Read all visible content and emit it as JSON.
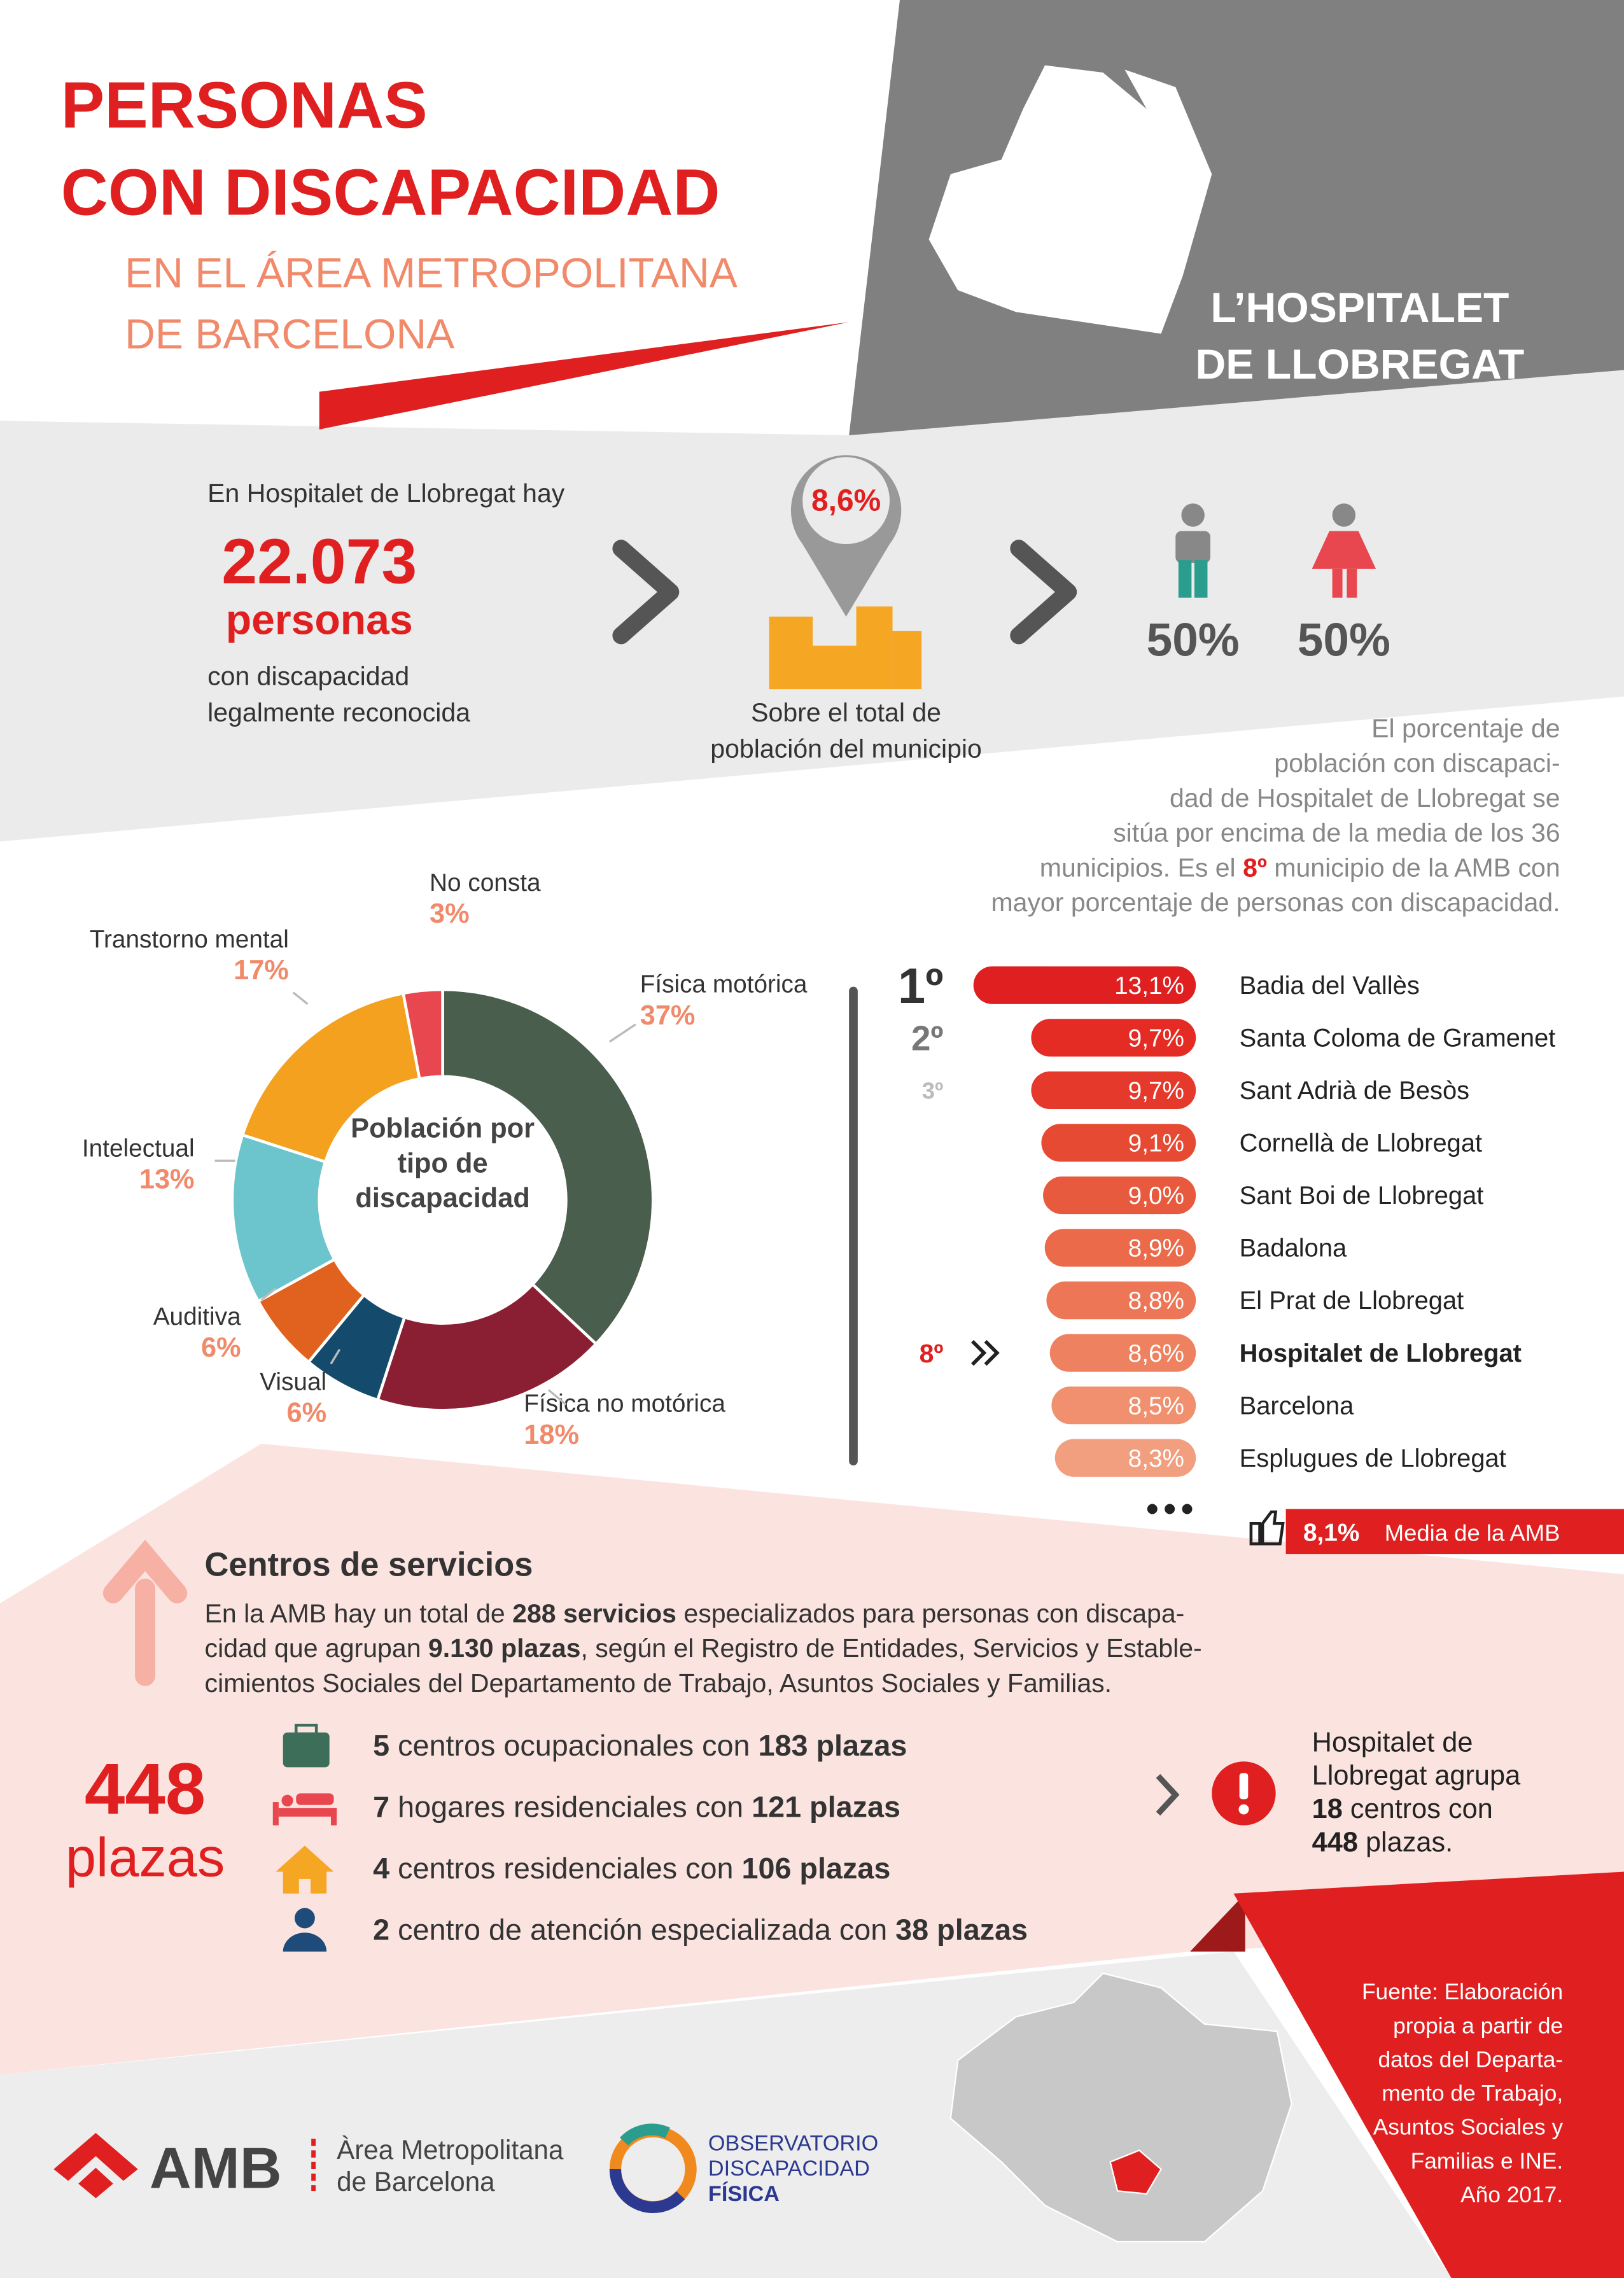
{
  "header": {
    "title": [
      "PERSONAS",
      "CON DISCAPACIDAD"
    ],
    "subtitle": [
      "EN EL ÁREA METROPOLITANA",
      "DE BARCELONA"
    ],
    "municipality": [
      "L’HOSPITALET",
      "DE LLOBREGAT"
    ]
  },
  "summary": {
    "intro": "En Hospitalet de Llobregat  hay",
    "count": "22.073",
    "count_unit": "personas",
    "count_desc": [
      "con discapacidad",
      "legalmente reconocida"
    ],
    "share": "8,6%",
    "share_desc": [
      "Sobre el total de",
      "población del municipio"
    ],
    "men": "50%",
    "women": "50%"
  },
  "note": {
    "lines": [
      [
        {
          "text": "El porcentaje de"
        }
      ],
      [
        {
          "text": "población con discapaci-"
        }
      ],
      [
        {
          "text": "dad de Hospitalet de Llobregat se"
        }
      ],
      [
        {
          "text": "sitúa por encima de la media de los 36"
        }
      ],
      [
        {
          "text": "municipios. Es el "
        },
        {
          "text": "8º",
          "bold": true
        },
        {
          "text": " municipio de la AMB con"
        }
      ],
      [
        {
          "text": "mayor porcentaje de personas con discapacidad."
        }
      ]
    ]
  },
  "chart_data": [
    {
      "type": "donut",
      "center_label": [
        "Población por",
        "tipo de",
        "discapacidad"
      ],
      "categories": [
        "Física motórica",
        "Física no motórica",
        "Visual",
        "Auditiva",
        "Intelectual",
        "Transtorno mental",
        "No consta"
      ],
      "values": [
        37,
        18,
        6,
        6,
        13,
        17,
        3
      ],
      "value_labels": [
        "37%",
        "18%",
        "6%",
        "6%",
        "13%",
        "17%",
        "3%"
      ],
      "colors": [
        "#4a5e4d",
        "#8a1f33",
        "#144b6c",
        "#e0621e",
        "#6cc4cc",
        "#f3a11f",
        "#e8474f"
      ]
    },
    {
      "type": "bar",
      "orientation": "horizontal",
      "categories": [
        "Badia del Vallès",
        "Santa Coloma de Gramenet",
        "Sant Adrià de Besòs",
        "Cornellà de Llobregat",
        "Sant Boi de Llobregat",
        "Badalona",
        "El Prat de Llobregat",
        "Hospitalet de Llobregat",
        "Barcelona",
        "Esplugues de Llobregat"
      ],
      "values": [
        13.1,
        9.7,
        9.7,
        9.1,
        9.0,
        8.9,
        8.8,
        8.6,
        8.5,
        8.3
      ],
      "value_labels": [
        "13,1%",
        "9,7%",
        "9,7%",
        "9,1%",
        "9,0%",
        "8,9%",
        "8,8%",
        "8,6%",
        "8,5%",
        "8,3%"
      ],
      "rank_labels": [
        "1º",
        "2º",
        "3º",
        null,
        null,
        null,
        null,
        "8º",
        null,
        null
      ],
      "highlight": 7,
      "colors": [
        "#e02020",
        "#e42c24",
        "#e53a2b",
        "#e64a33",
        "#e85a3e",
        "#ea6a4a",
        "#ec7656",
        "#ee8260",
        "#f0906e",
        "#f29f80"
      ],
      "average": {
        "name": "Media de la AMB",
        "label": "8,1%"
      }
    }
  ],
  "services": {
    "title": "Centros de servicios",
    "lines": [
      [
        {
          "text": "En la AMB hay un total de "
        },
        {
          "text": "288 servicios",
          "bold": true
        },
        {
          "text": " especializados para personas con discapa-"
        }
      ],
      [
        {
          "text": "cidad que agrupan "
        },
        {
          "text": "9.130 plazas",
          "bold": true
        },
        {
          "text": ", según el Registro de Entidades, Servicios y Estable-"
        }
      ],
      [
        {
          "text": "cimientos Sociales del Departamento de Trabajo, Asuntos Sociales y Familias."
        }
      ]
    ],
    "total": "448",
    "total_unit": "plazas",
    "items": [
      [
        {
          "text": "5",
          "bold": true
        },
        {
          "text": " centros ocupacionales con "
        },
        {
          "text": "183 plazas",
          "bold": true
        }
      ],
      [
        {
          "text": "7",
          "bold": true
        },
        {
          "text": " hogares residenciales con "
        },
        {
          "text": "121 plazas",
          "bold": true
        }
      ],
      [
        {
          "text": "4",
          "bold": true
        },
        {
          "text": " centros residenciales con "
        },
        {
          "text": "106 plazas",
          "bold": true
        }
      ],
      [
        {
          "text": "2",
          "bold": true
        },
        {
          "text": " centro de atención especializada con "
        },
        {
          "text": "38 plazas",
          "bold": true
        }
      ]
    ],
    "callout": [
      [
        {
          "text": "Hospitalet de"
        }
      ],
      [
        {
          "text": "Llobregat agrupa"
        }
      ],
      [
        {
          "text": "18",
          "bold": true
        },
        {
          "text": " centros con"
        }
      ],
      [
        {
          "text": "448",
          "bold": true
        },
        {
          "text": " plazas."
        }
      ]
    ]
  },
  "source": [
    "Fuente: Elaboración",
    "propia a partir de",
    "datos del  Departa-",
    "mento de Trabajo,",
    "Asuntos Sociales y",
    "Familias e INE.",
    "Año 2017."
  ],
  "footer": {
    "amb": "AMB",
    "amb_name": [
      "Àrea Metropolitana",
      "de Barcelona"
    ],
    "observatorio": [
      "OBSERVATORIO",
      "DISCAPACIDAD",
      "FÍSICA"
    ]
  }
}
